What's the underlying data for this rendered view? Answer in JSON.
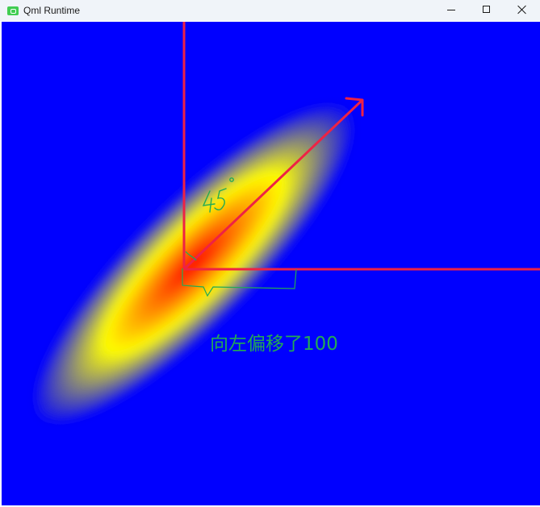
{
  "window": {
    "title": "Qml Runtime",
    "app_icon": "qt-logo-icon",
    "controls": [
      "minimize-icon",
      "maximize-icon",
      "close-icon"
    ]
  },
  "canvas": {
    "background_color": "#0000ff",
    "gradient": {
      "type": "radial",
      "rotation_degrees": -45,
      "stops": [
        {
          "offset": 0.0,
          "color": "#ff0000"
        },
        {
          "offset": 0.55,
          "color": "#ffff00"
        },
        {
          "offset": 1.0,
          "color": "#0000ff"
        }
      ]
    },
    "axes_color": "#ee2244",
    "arrow_color": "#ee2244",
    "arrow_angle_degrees": 45,
    "annotation_color": "#22aa55",
    "angle_annotation": "45°",
    "annotation_text": "向左偏移了100"
  }
}
